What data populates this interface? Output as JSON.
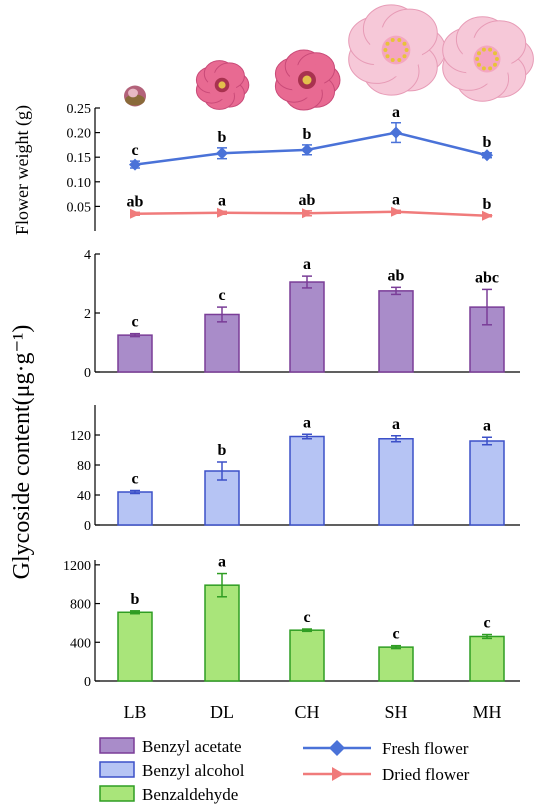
{
  "colors": {
    "axis": "#000000",
    "fresh_line": "#4a72d8",
    "dried_line": "#f07b7b",
    "acetate_fill": "#a98cc9",
    "acetate_stroke": "#7a3d97",
    "alcohol_fill": "#b6c4f4",
    "alcohol_stroke": "#3c50c8",
    "aldehyde_fill": "#a9e57a",
    "aldehyde_stroke": "#2f9d23",
    "petal_pink": "#e86a92",
    "petal_light": "#f6c8d8"
  },
  "chart_data": [
    {
      "type": "line",
      "id": "flower_weight",
      "ylabel": "Flower weight (g)",
      "ylim": [
        0.0,
        0.25
      ],
      "yticks": [
        0.05,
        0.1,
        0.15,
        0.2,
        0.25
      ],
      "ytick_labels": [
        "0.05",
        "0.10",
        "0.15",
        "0.20",
        "0.25"
      ],
      "categories": [
        "LB",
        "DL",
        "CH",
        "SH",
        "MH"
      ],
      "series": [
        {
          "name": "Fresh flower",
          "marker": "diamond",
          "color_key": "fresh_line",
          "values": [
            0.135,
            0.158,
            0.165,
            0.2,
            0.154
          ],
          "errors": [
            0.007,
            0.011,
            0.01,
            0.02,
            0.005
          ],
          "letters": [
            "c",
            "b",
            "b",
            "a",
            "b"
          ]
        },
        {
          "name": "Dried flower",
          "marker": "triangle-right",
          "color_key": "dried_line",
          "values": [
            0.035,
            0.037,
            0.036,
            0.039,
            0.031
          ],
          "errors": [
            0.003,
            0.003,
            0.005,
            0.003,
            0.002
          ],
          "letters": [
            "ab",
            "a",
            "ab",
            "a",
            "b"
          ]
        }
      ]
    },
    {
      "type": "bar",
      "id": "benzyl_acetate",
      "name": "Benzyl acetate",
      "ylim": [
        0,
        4
      ],
      "yticks": [
        0,
        2,
        4
      ],
      "ytick_labels": [
        "0",
        "2",
        "4"
      ],
      "categories": [
        "LB",
        "DL",
        "CH",
        "SH",
        "MH"
      ],
      "values": [
        1.25,
        1.95,
        3.05,
        2.75,
        2.2
      ],
      "errors": [
        0.05,
        0.25,
        0.2,
        0.12,
        0.6
      ],
      "letters": [
        "c",
        "c",
        "a",
        "ab",
        "abc"
      ],
      "fill_key": "acetate_fill",
      "stroke_key": "acetate_stroke"
    },
    {
      "type": "bar",
      "id": "benzyl_alcohol",
      "name": "Benzyl alcohol",
      "ylim": [
        0,
        160
      ],
      "yticks": [
        0,
        40,
        80,
        120
      ],
      "ytick_labels": [
        "0",
        "40",
        "80",
        "120"
      ],
      "categories": [
        "LB",
        "DL",
        "CH",
        "SH",
        "MH"
      ],
      "values": [
        44,
        72,
        118,
        115,
        112
      ],
      "errors": [
        2,
        12,
        3,
        4,
        5
      ],
      "letters": [
        "c",
        "b",
        "a",
        "a",
        "a"
      ],
      "fill_key": "alcohol_fill",
      "stroke_key": "alcohol_stroke"
    },
    {
      "type": "bar",
      "id": "benzaldehyde",
      "name": "Benzaldehyde",
      "ylim": [
        0,
        1250
      ],
      "yticks": [
        0,
        400,
        800,
        1200
      ],
      "ytick_labels": [
        "0",
        "400",
        "800",
        "1200"
      ],
      "categories": [
        "LB",
        "DL",
        "CH",
        "SH",
        "MH"
      ],
      "values": [
        710,
        990,
        525,
        350,
        460
      ],
      "errors": [
        15,
        120,
        12,
        15,
        20
      ],
      "letters": [
        "b",
        "a",
        "c",
        "c",
        "c"
      ],
      "fill_key": "aldehyde_fill",
      "stroke_key": "aldehyde_stroke"
    }
  ],
  "shared": {
    "glycoside_ylabel": "Glycoside content(μg·g⁻¹)",
    "x_labels": [
      "LB",
      "DL",
      "CH",
      "SH",
      "MH"
    ]
  },
  "legend": {
    "bars": [
      "Benzyl acetate",
      "Benzyl alcohol",
      "Benzaldehyde"
    ],
    "lines": [
      "Fresh flower",
      "Dried flower"
    ]
  },
  "flower_images": [
    {
      "stage": "LB",
      "icon": "bud-icon"
    },
    {
      "stage": "DL",
      "icon": "flower-icon"
    },
    {
      "stage": "CH",
      "icon": "flower-icon"
    },
    {
      "stage": "SH",
      "icon": "flower-icon"
    },
    {
      "stage": "MH",
      "icon": "flower-icon"
    }
  ]
}
